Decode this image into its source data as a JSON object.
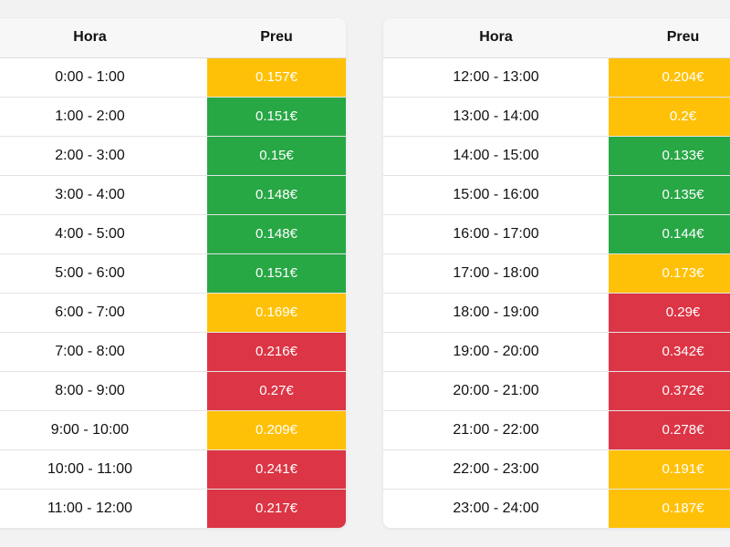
{
  "colors": {
    "green": "#28a745",
    "yellow": "#ffc107",
    "red": "#dc3545"
  },
  "tables": [
    {
      "header": {
        "hour": "Hora",
        "price": "Preu"
      },
      "rows": [
        {
          "hour": "0:00 - 1:00",
          "price": "0.157€",
          "level": "yellow"
        },
        {
          "hour": "1:00 - 2:00",
          "price": "0.151€",
          "level": "green"
        },
        {
          "hour": "2:00 - 3:00",
          "price": "0.15€",
          "level": "green"
        },
        {
          "hour": "3:00 - 4:00",
          "price": "0.148€",
          "level": "green"
        },
        {
          "hour": "4:00 - 5:00",
          "price": "0.148€",
          "level": "green"
        },
        {
          "hour": "5:00 - 6:00",
          "price": "0.151€",
          "level": "green"
        },
        {
          "hour": "6:00 - 7:00",
          "price": "0.169€",
          "level": "yellow"
        },
        {
          "hour": "7:00 - 8:00",
          "price": "0.216€",
          "level": "red"
        },
        {
          "hour": "8:00 - 9:00",
          "price": "0.27€",
          "level": "red"
        },
        {
          "hour": "9:00 - 10:00",
          "price": "0.209€",
          "level": "yellow"
        },
        {
          "hour": "10:00 - 11:00",
          "price": "0.241€",
          "level": "red"
        },
        {
          "hour": "11:00 - 12:00",
          "price": "0.217€",
          "level": "red"
        }
      ]
    },
    {
      "header": {
        "hour": "Hora",
        "price": "Preu"
      },
      "rows": [
        {
          "hour": "12:00 - 13:00",
          "price": "0.204€",
          "level": "yellow"
        },
        {
          "hour": "13:00 - 14:00",
          "price": "0.2€",
          "level": "yellow"
        },
        {
          "hour": "14:00 - 15:00",
          "price": "0.133€",
          "level": "green"
        },
        {
          "hour": "15:00 - 16:00",
          "price": "0.135€",
          "level": "green"
        },
        {
          "hour": "16:00 - 17:00",
          "price": "0.144€",
          "level": "green"
        },
        {
          "hour": "17:00 - 18:00",
          "price": "0.173€",
          "level": "yellow"
        },
        {
          "hour": "18:00 - 19:00",
          "price": "0.29€",
          "level": "red"
        },
        {
          "hour": "19:00 - 20:00",
          "price": "0.342€",
          "level": "red"
        },
        {
          "hour": "20:00 - 21:00",
          "price": "0.372€",
          "level": "red"
        },
        {
          "hour": "21:00 - 22:00",
          "price": "0.278€",
          "level": "red"
        },
        {
          "hour": "22:00 - 23:00",
          "price": "0.191€",
          "level": "yellow"
        },
        {
          "hour": "23:00 - 24:00",
          "price": "0.187€",
          "level": "yellow"
        }
      ]
    }
  ]
}
